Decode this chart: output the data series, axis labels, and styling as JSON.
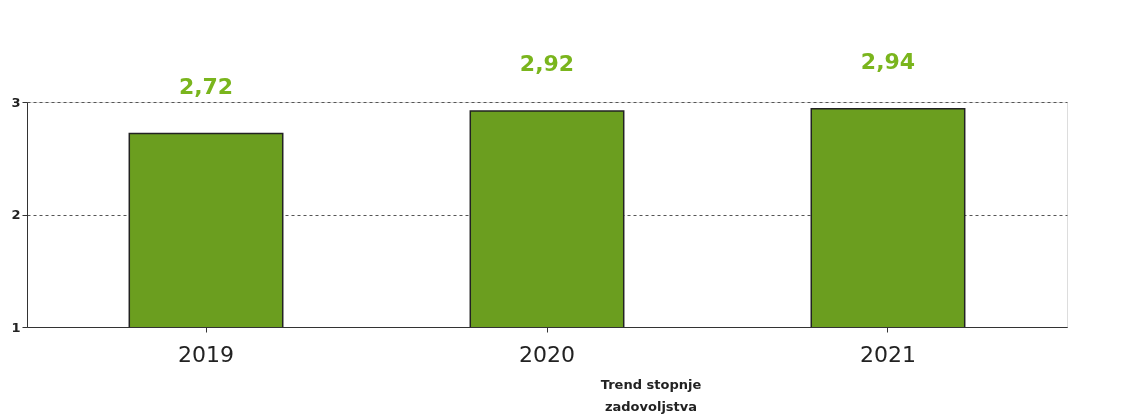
{
  "chart_data": {
    "type": "bar",
    "categories": [
      "2019",
      "2020",
      "2021"
    ],
    "values": [
      2.72,
      2.92,
      2.94
    ],
    "color": "#6b9e1f",
    "value_labels": [
      "2,72",
      "2,92",
      "2,94"
    ],
    "ylim": [
      1,
      3
    ],
    "yticks": [
      1,
      2,
      3
    ],
    "grid": "y",
    "annotations": [
      "Trend stopnje zadovoljstva"
    ]
  }
}
